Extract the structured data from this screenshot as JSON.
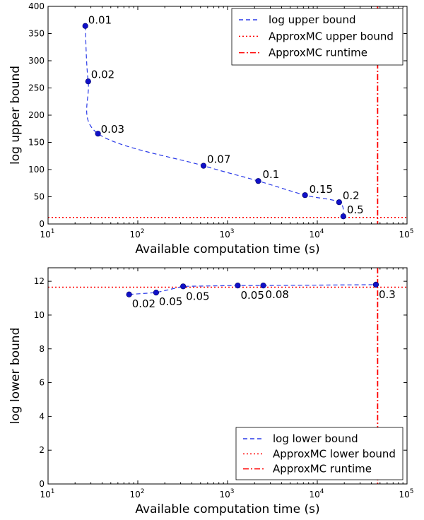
{
  "chart_data": [
    {
      "type": "line",
      "xscale": "log",
      "xlabel": "Available computation time (s)",
      "ylabel": "log upper bound",
      "xlim": [
        10,
        100000
      ],
      "ylim": [
        0,
        400
      ],
      "xticks": [
        10,
        100,
        1000,
        10000,
        100000
      ],
      "yticks": [
        0,
        50,
        100,
        150,
        200,
        250,
        300,
        350,
        400
      ],
      "legend_position": "top-right",
      "series": [
        {
          "name": "log upper bound",
          "style": "dashed",
          "color": "#2b3be8",
          "marker_color": "#1010c8",
          "points": [
            {
              "x": 26,
              "y": 364,
              "label": "0.01"
            },
            {
              "x": 28,
              "y": 262,
              "label": "0.02"
            },
            {
              "x": 36,
              "y": 166,
              "label": "0.03"
            },
            {
              "x": 540,
              "y": 107,
              "label": "0.07"
            },
            {
              "x": 2200,
              "y": 79,
              "label": "0.1"
            },
            {
              "x": 7300,
              "y": 53,
              "label": "0.15"
            },
            {
              "x": 17500,
              "y": 40,
              "label": "0.2"
            },
            {
              "x": 19500,
              "y": 14,
              "label": "0.5"
            }
          ]
        }
      ],
      "hline": {
        "name": "ApproxMC upper bound",
        "y": 12,
        "style": "dotted",
        "color": "#ff0000"
      },
      "vline": {
        "name": "ApproxMC runtime",
        "x": 47000,
        "style": "dashdot",
        "color": "#ff0000"
      }
    },
    {
      "type": "line",
      "xscale": "log",
      "xlabel": "Available computation time (s)",
      "ylabel": "log lower bound",
      "xlim": [
        10,
        100000
      ],
      "ylim": [
        0,
        12.8
      ],
      "xticks": [
        10,
        100,
        1000,
        10000,
        100000
      ],
      "yticks": [
        0,
        2,
        4,
        6,
        8,
        10,
        12
      ],
      "legend_position": "bottom-right",
      "series": [
        {
          "name": "log lower bound",
          "style": "dashed",
          "color": "#2b3be8",
          "marker_color": "#1010c8",
          "points": [
            {
              "x": 80,
              "y": 11.22,
              "label": "0.02"
            },
            {
              "x": 160,
              "y": 11.33,
              "label": "0.05"
            },
            {
              "x": 320,
              "y": 11.7,
              "label": "0.05"
            },
            {
              "x": 1300,
              "y": 11.75,
              "label": "0.05"
            },
            {
              "x": 2500,
              "y": 11.75,
              "label": "0.08"
            },
            {
              "x": 45000,
              "y": 11.8,
              "label": "0.3"
            }
          ]
        }
      ],
      "hline": {
        "name": "ApproxMC lower bound",
        "y": 11.65,
        "style": "dotted",
        "color": "#ff0000"
      },
      "vline": {
        "name": "ApproxMC runtime",
        "x": 47000,
        "style": "dashdot",
        "color": "#ff0000"
      }
    }
  ]
}
